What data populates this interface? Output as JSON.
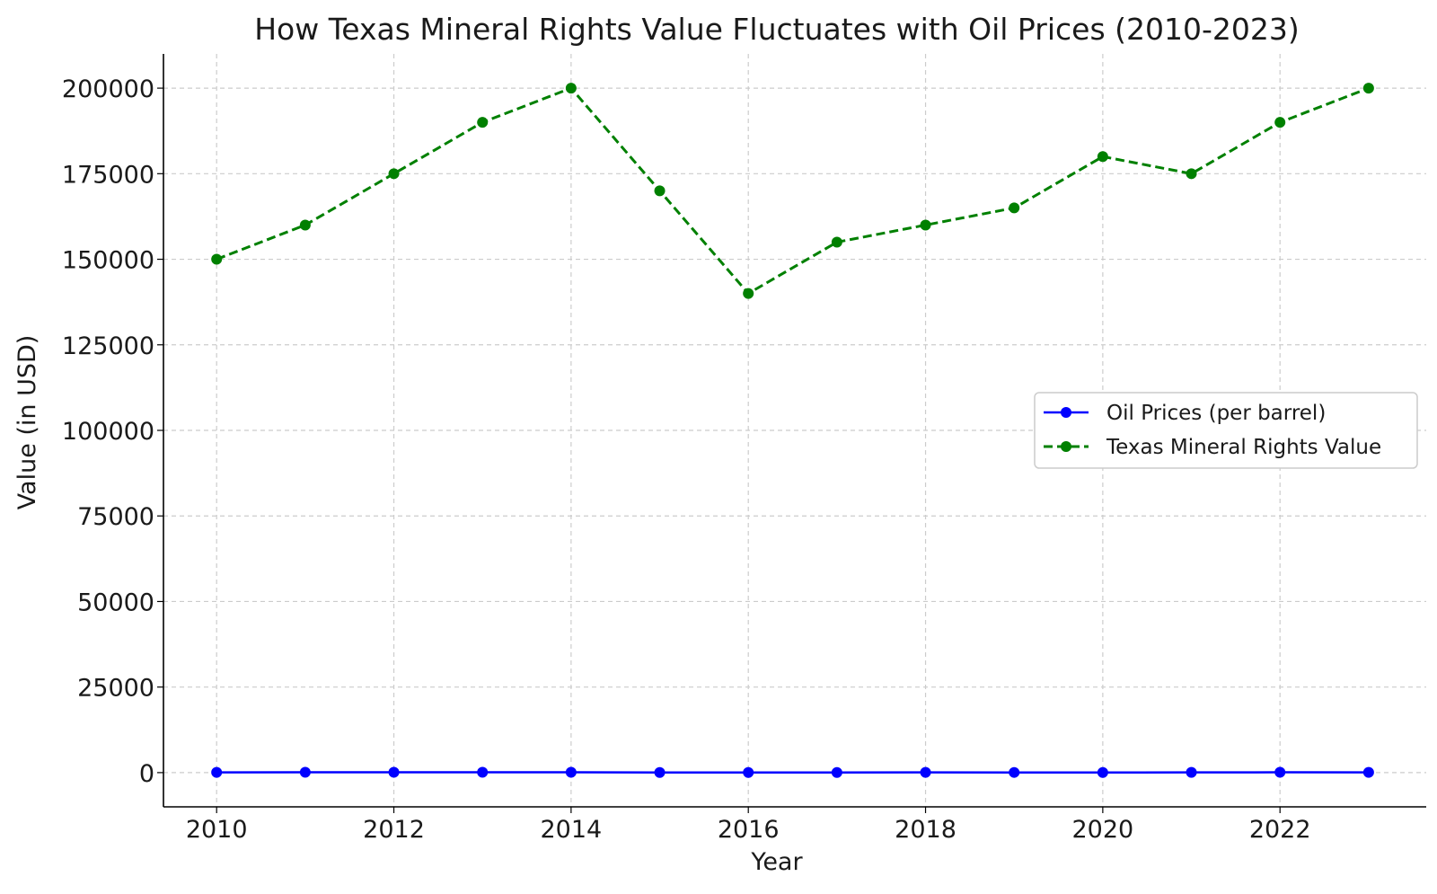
{
  "chart_data": {
    "type": "line",
    "title": "How Texas Mineral Rights Value Fluctuates with Oil Prices (2010-2023)",
    "xlabel": "Year",
    "ylabel": "Value (in USD)",
    "x": [
      2010,
      2011,
      2012,
      2013,
      2014,
      2015,
      2016,
      2017,
      2018,
      2019,
      2020,
      2021,
      2022,
      2023
    ],
    "xlim": [
      2009.4,
      2023.65
    ],
    "ylim": [
      -10000,
      210000
    ],
    "xticks": [
      2010,
      2012,
      2014,
      2016,
      2018,
      2020,
      2022
    ],
    "xtick_labels": [
      "2010",
      "2012",
      "2014",
      "2016",
      "2018",
      "2020",
      "2022"
    ],
    "yticks": [
      0,
      25000,
      50000,
      75000,
      100000,
      125000,
      150000,
      175000,
      200000
    ],
    "ytick_labels": [
      "0",
      "25000",
      "50000",
      "75000",
      "100000",
      "125000",
      "150000",
      "175000",
      "200000"
    ],
    "grid": true,
    "legend_position": "center-right",
    "series": [
      {
        "name": "Oil Prices (per barrel)",
        "color": "#0000ff",
        "line_style": "solid",
        "marker": "circle",
        "values": [
          79,
          95,
          94,
          98,
          93,
          49,
          43,
          51,
          65,
          57,
          39,
          68,
          95,
          78
        ]
      },
      {
        "name": "Texas Mineral Rights Value",
        "color": "#008000",
        "line_style": "dashed",
        "marker": "circle",
        "values": [
          150000,
          160000,
          175000,
          190000,
          200000,
          170000,
          140000,
          155000,
          160000,
          165000,
          180000,
          175000,
          190000,
          200000
        ]
      }
    ]
  }
}
